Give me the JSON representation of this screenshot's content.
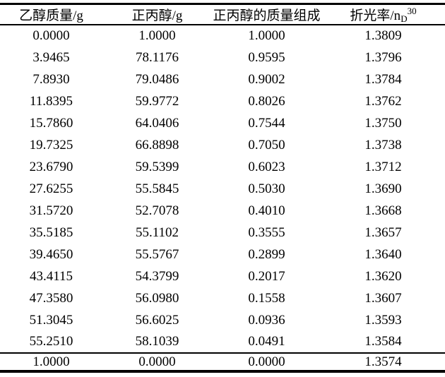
{
  "colors": {
    "background": "#ffffff",
    "text": "#000000",
    "rule": "#000000"
  },
  "table": {
    "headers": [
      {
        "text": "乙醇质量/g"
      },
      {
        "text": "正丙醇/g"
      },
      {
        "text": "正丙醇的质量组成"
      },
      {
        "text": "折光率/n",
        "sub": "D",
        "sup": "30"
      }
    ],
    "rows": [
      [
        "0.0000",
        "1.0000",
        "1.0000",
        "1.3809"
      ],
      [
        "3.9465",
        "78.1176",
        "0.9595",
        "1.3796"
      ],
      [
        "7.8930",
        "79.0486",
        "0.9002",
        "1.3784"
      ],
      [
        "11.8395",
        "59.9772",
        "0.8026",
        "1.3762"
      ],
      [
        "15.7860",
        "64.0406",
        "0.7544",
        "1.3750"
      ],
      [
        "19.7325",
        "66.8898",
        "0.7050",
        "1.3738"
      ],
      [
        "23.6790",
        "59.5399",
        "0.6023",
        "1.3712"
      ],
      [
        "27.6255",
        "55.5845",
        "0.5030",
        "1.3690"
      ],
      [
        "31.5720",
        "52.7078",
        "0.4010",
        "1.3668"
      ],
      [
        "35.5185",
        "55.1102",
        "0.3555",
        "1.3657"
      ],
      [
        "39.4650",
        "55.5767",
        "0.2899",
        "1.3640"
      ],
      [
        "43.4115",
        "54.3799",
        "0.2017",
        "1.3620"
      ],
      [
        "47.3580",
        "56.0980",
        "0.1558",
        "1.3607"
      ],
      [
        "51.3045",
        "56.6025",
        "0.0936",
        "1.3593"
      ],
      [
        "55.2510",
        "58.1039",
        "0.0491",
        "1.3584"
      ]
    ],
    "footer_row": [
      "1.0000",
      "0.0000",
      "0.0000",
      "1.3574"
    ]
  }
}
